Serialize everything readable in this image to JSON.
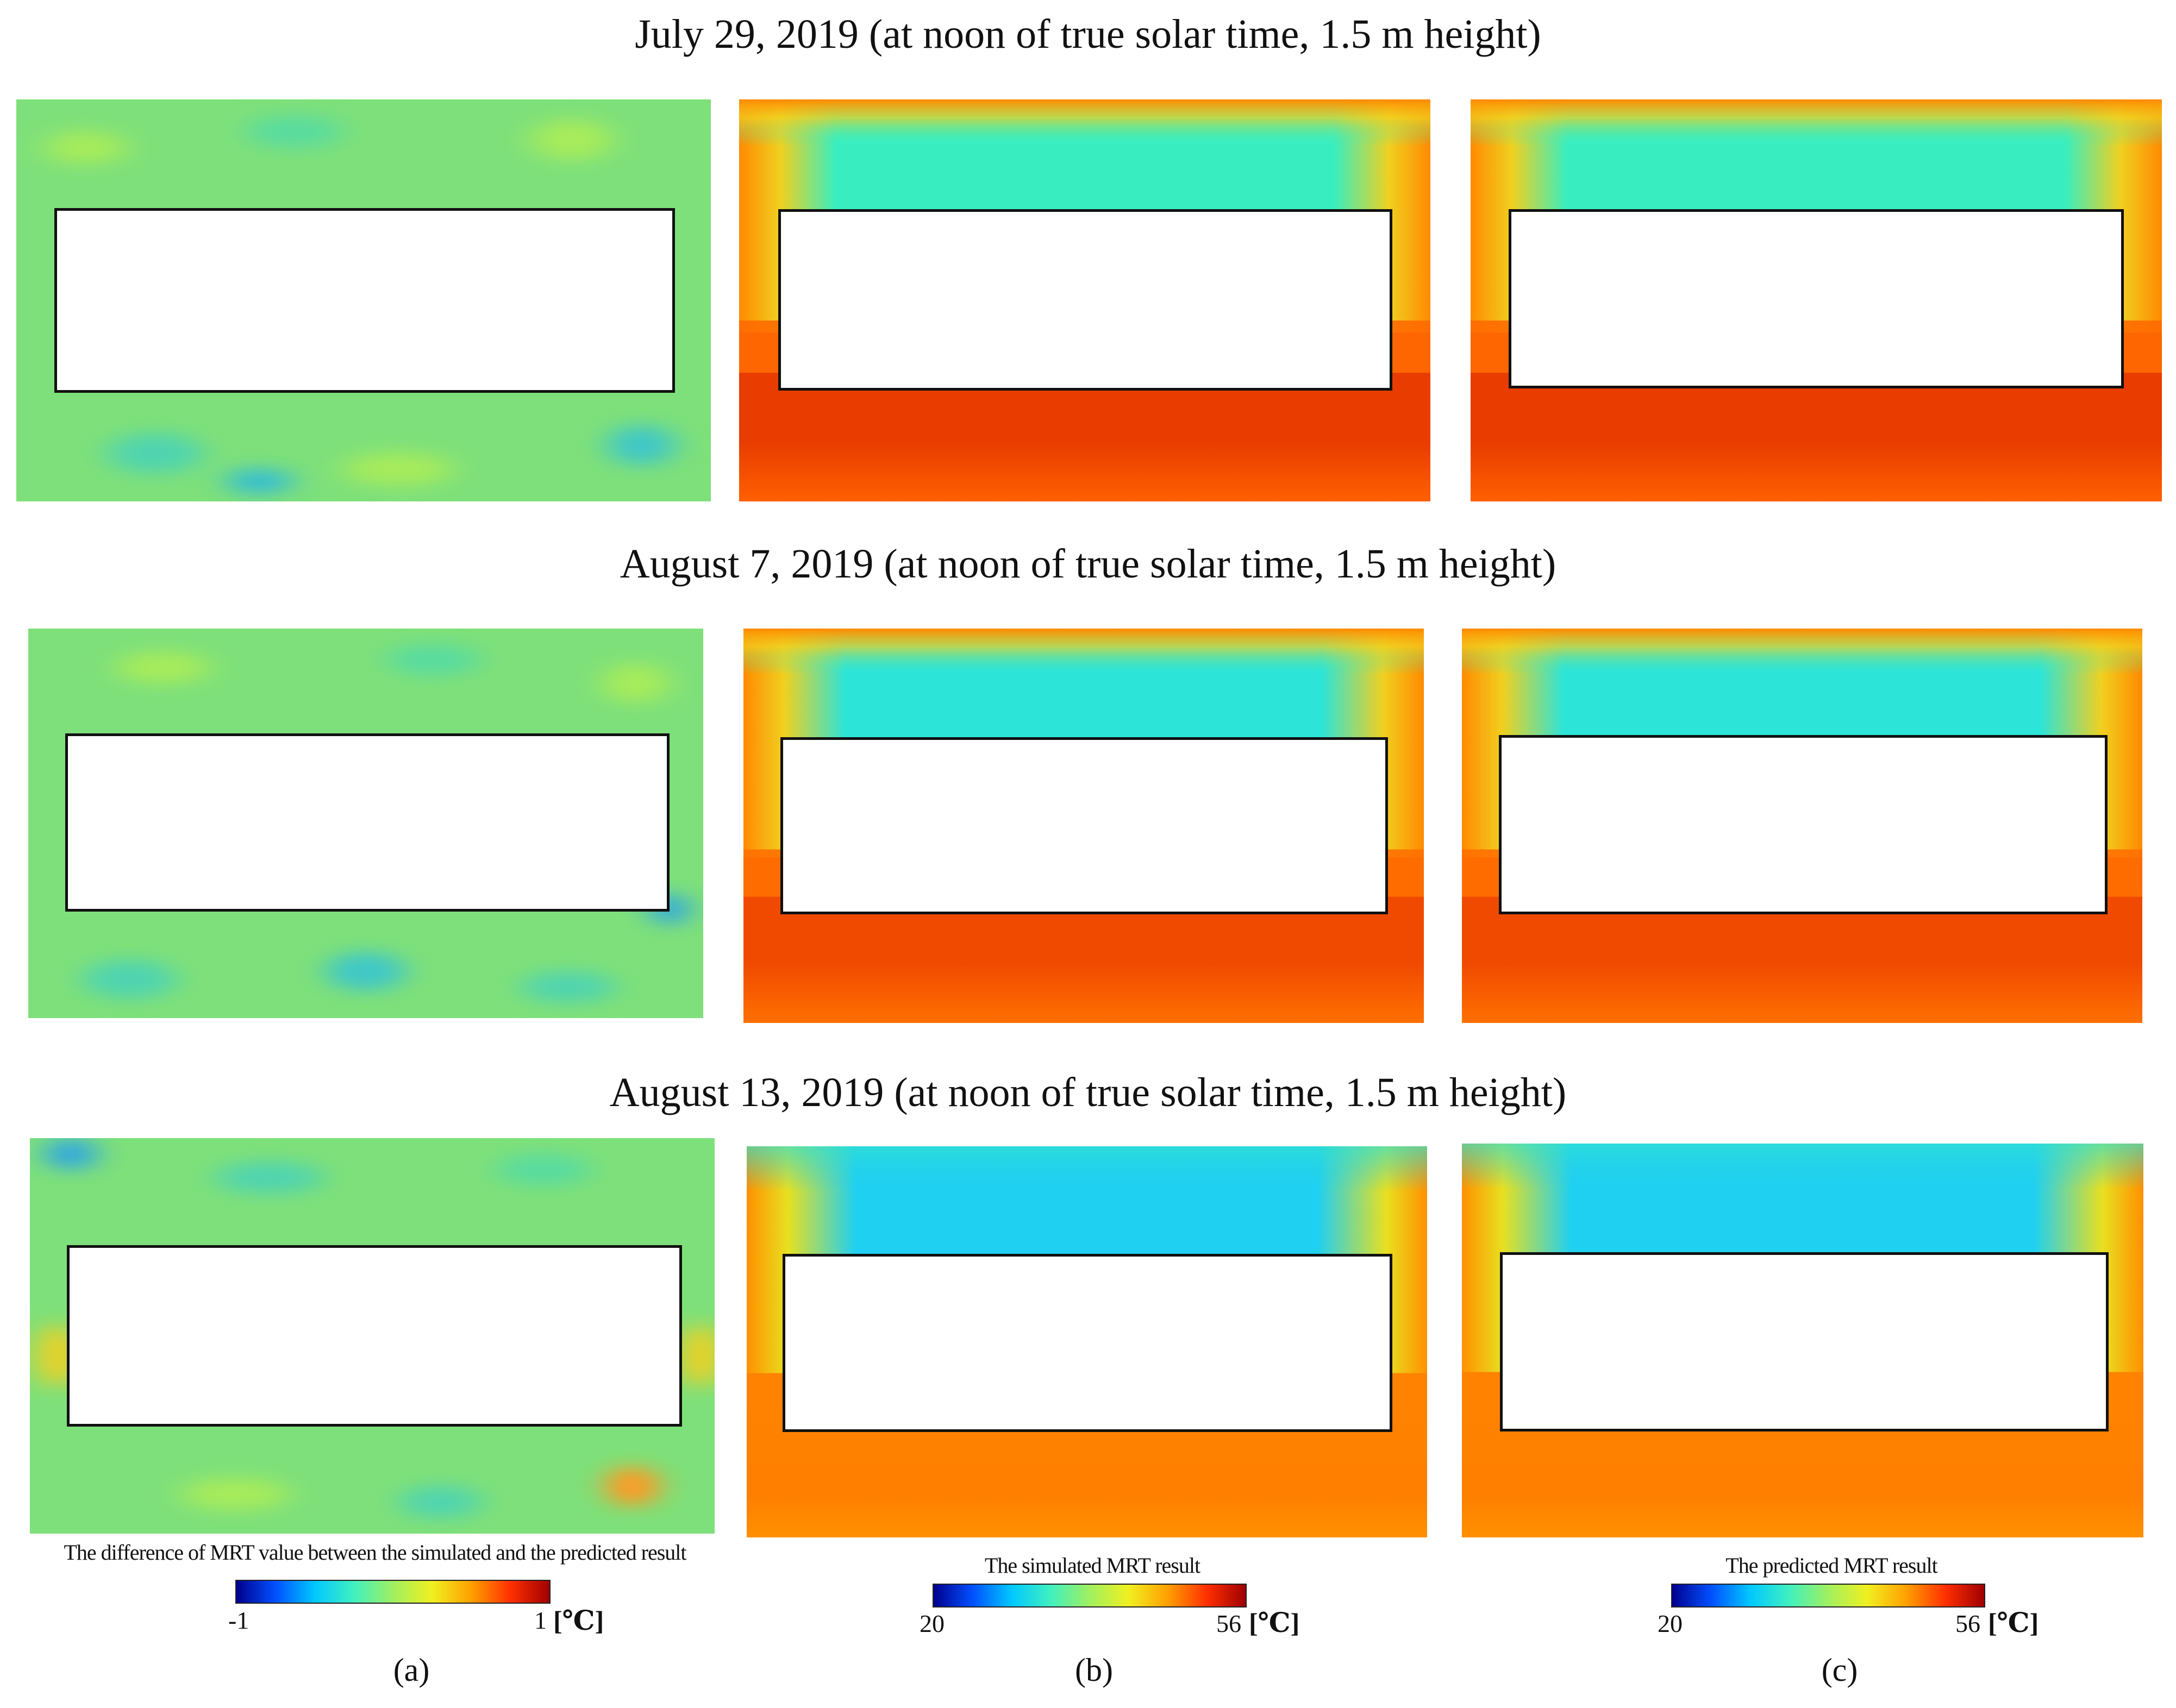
{
  "rows": [
    {
      "title": "July 29, 2019 (at noon of true solar time, 1.5 m height)"
    },
    {
      "title": "August 7, 2019 (at noon of true solar time, 1.5 m height)"
    },
    {
      "title": "August 13, 2019 (at noon of true solar time, 1.5 m height)"
    }
  ],
  "panels": [
    {
      "label": "(a)",
      "caption": "The difference of MRT value between the simulated and the predicted result",
      "scale_min": "-1",
      "scale_max": "1",
      "unit": "[℃]"
    },
    {
      "label": "(b)",
      "caption": "The simulated MRT result",
      "scale_min": "20",
      "scale_max": "56",
      "unit": "[℃]"
    },
    {
      "label": "(c)",
      "caption": "The predicted MRT result",
      "scale_min": "20",
      "scale_max": "56",
      "unit": "[℃]"
    }
  ],
  "colors": {
    "jet": [
      "#00008f",
      "#0050ff",
      "#00c8ff",
      "#40f0c0",
      "#a0f060",
      "#f0f020",
      "#ffa000",
      "#ff3000",
      "#a00000"
    ],
    "difference_field": "#7ee07a",
    "mrt_top": "#38eec0",
    "mrt_top_cool": "#20d0f0",
    "mrt_bottom_hot": "#e83c00",
    "mrt_bottom_warm": "#ff7a00",
    "building": "#ffffff"
  }
}
